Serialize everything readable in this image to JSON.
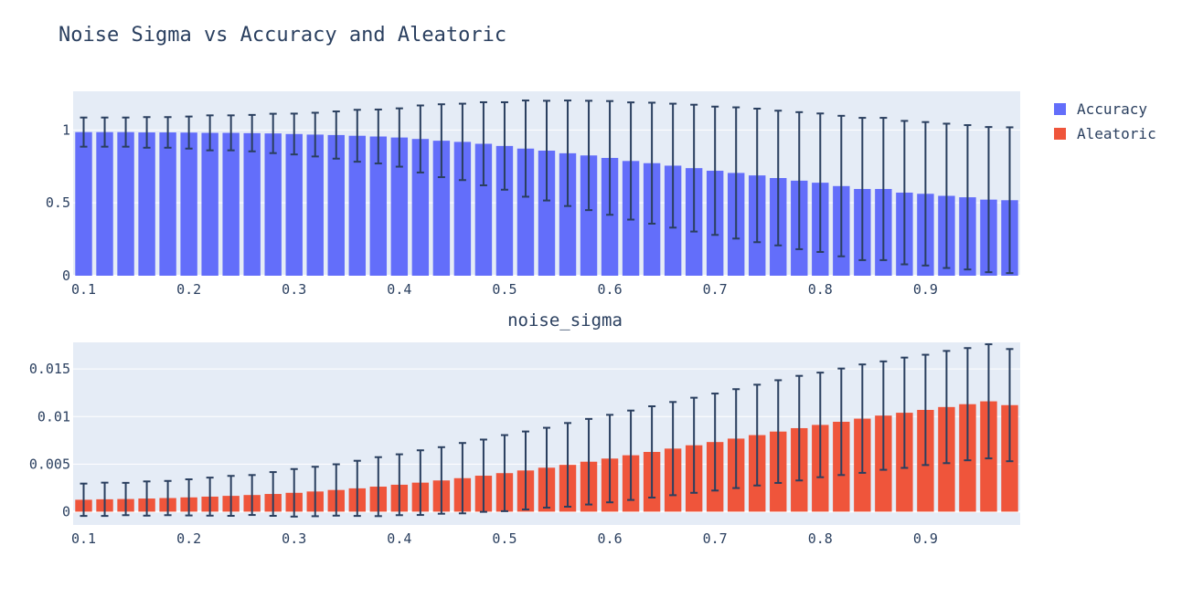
{
  "title": "Noise Sigma vs Accuracy and Aleatoric",
  "legend": [
    {
      "name": "Accuracy",
      "color": "#636efa"
    },
    {
      "name": "Aleatoric",
      "color": "#ef553b"
    }
  ],
  "colors": {
    "plot_bg": "#e5ecf6",
    "grid": "#ffffff",
    "error_bar": "#2a3f5f",
    "text": "#2a3f5f"
  },
  "chart_data": [
    {
      "type": "bar",
      "series_name": "Accuracy",
      "color": "#636efa",
      "x": [
        0.1,
        0.12,
        0.14,
        0.16,
        0.18,
        0.2,
        0.22,
        0.24,
        0.26,
        0.28,
        0.3,
        0.32,
        0.34,
        0.36,
        0.38,
        0.4,
        0.42,
        0.44,
        0.46,
        0.48,
        0.5,
        0.52,
        0.54,
        0.56,
        0.58,
        0.6,
        0.62,
        0.64,
        0.66,
        0.68,
        0.7,
        0.72,
        0.74,
        0.76,
        0.78,
        0.8,
        0.82,
        0.84,
        0.86,
        0.88,
        0.9,
        0.92,
        0.94,
        0.96,
        0.98
      ],
      "values": [
        0.985,
        0.985,
        0.985,
        0.983,
        0.983,
        0.982,
        0.98,
        0.98,
        0.978,
        0.976,
        0.972,
        0.968,
        0.965,
        0.96,
        0.955,
        0.948,
        0.938,
        0.926,
        0.918,
        0.905,
        0.89,
        0.872,
        0.858,
        0.84,
        0.825,
        0.808,
        0.787,
        0.772,
        0.755,
        0.738,
        0.72,
        0.705,
        0.688,
        0.67,
        0.652,
        0.638,
        0.615,
        0.595,
        0.595,
        0.57,
        0.562,
        0.548,
        0.538,
        0.522,
        0.518
      ],
      "error": [
        0.1,
        0.1,
        0.1,
        0.105,
        0.105,
        0.11,
        0.12,
        0.12,
        0.125,
        0.135,
        0.14,
        0.15,
        0.162,
        0.178,
        0.185,
        0.2,
        0.23,
        0.25,
        0.262,
        0.285,
        0.3,
        0.33,
        0.342,
        0.362,
        0.375,
        0.39,
        0.402,
        0.415,
        0.425,
        0.435,
        0.44,
        0.45,
        0.458,
        0.462,
        0.47,
        0.475,
        0.482,
        0.488,
        0.488,
        0.492,
        0.492,
        0.495,
        0.495,
        0.498,
        0.5
      ],
      "xlabel": "",
      "ylabel": "",
      "xticks": [
        0.1,
        0.2,
        0.3,
        0.4,
        0.5,
        0.6,
        0.7,
        0.8,
        0.9
      ],
      "xtick_labels": [
        "0.1",
        "0.2",
        "0.3",
        "0.4",
        "0.5",
        "0.6",
        "0.7",
        "0.8",
        "0.9"
      ],
      "yticks": [
        0,
        0.5,
        1
      ],
      "ytick_labels": [
        "0",
        "0.5",
        "1"
      ],
      "xlim": [
        0.09,
        0.99
      ],
      "ylim": [
        0,
        1.265
      ],
      "grid": true
    },
    {
      "type": "bar",
      "series_name": "Aleatoric",
      "color": "#ef553b",
      "x": [
        0.1,
        0.12,
        0.14,
        0.16,
        0.18,
        0.2,
        0.22,
        0.24,
        0.26,
        0.28,
        0.3,
        0.32,
        0.34,
        0.36,
        0.38,
        0.4,
        0.42,
        0.44,
        0.46,
        0.48,
        0.5,
        0.52,
        0.54,
        0.56,
        0.58,
        0.6,
        0.62,
        0.64,
        0.66,
        0.68,
        0.7,
        0.72,
        0.74,
        0.76,
        0.78,
        0.8,
        0.82,
        0.84,
        0.86,
        0.88,
        0.9,
        0.92,
        0.94,
        0.96,
        0.98
      ],
      "values": [
        0.00125,
        0.0013,
        0.00133,
        0.00138,
        0.00143,
        0.0015,
        0.00158,
        0.00166,
        0.00175,
        0.00186,
        0.00198,
        0.00212,
        0.00228,
        0.00245,
        0.00263,
        0.00283,
        0.00305,
        0.00328,
        0.00352,
        0.00378,
        0.00405,
        0.00433,
        0.00462,
        0.00492,
        0.00525,
        0.00558,
        0.00593,
        0.00628,
        0.00663,
        0.00698,
        0.00732,
        0.00768,
        0.00805,
        0.00842,
        0.00878,
        0.00912,
        0.00945,
        0.00978,
        0.0101,
        0.0104,
        0.0107,
        0.011,
        0.0113,
        0.0116,
        0.0112
      ],
      "error": [
        0.0017,
        0.00175,
        0.0017,
        0.0018,
        0.0018,
        0.0019,
        0.002,
        0.0021,
        0.0021,
        0.0023,
        0.0025,
        0.0026,
        0.0027,
        0.0029,
        0.0031,
        0.0032,
        0.0034,
        0.0035,
        0.0037,
        0.0038,
        0.004,
        0.0041,
        0.0042,
        0.0044,
        0.0045,
        0.0046,
        0.0047,
        0.0048,
        0.0049,
        0.005,
        0.0051,
        0.0052,
        0.0053,
        0.0054,
        0.0055,
        0.0055,
        0.0056,
        0.0057,
        0.0057,
        0.0058,
        0.0058,
        0.0059,
        0.0059,
        0.006,
        0.0059
      ],
      "xlabel": "noise_sigma",
      "ylabel": "",
      "xticks": [
        0.1,
        0.2,
        0.3,
        0.4,
        0.5,
        0.6,
        0.7,
        0.8,
        0.9
      ],
      "xtick_labels": [
        "0.1",
        "0.2",
        "0.3",
        "0.4",
        "0.5",
        "0.6",
        "0.7",
        "0.8",
        "0.9"
      ],
      "yticks": [
        0,
        0.005,
        0.01,
        0.015
      ],
      "ytick_labels": [
        "0",
        "0.005",
        "0.01",
        "0.015"
      ],
      "xlim": [
        0.09,
        0.99
      ],
      "ylim": [
        -0.0014,
        0.0178
      ],
      "grid": true
    }
  ]
}
